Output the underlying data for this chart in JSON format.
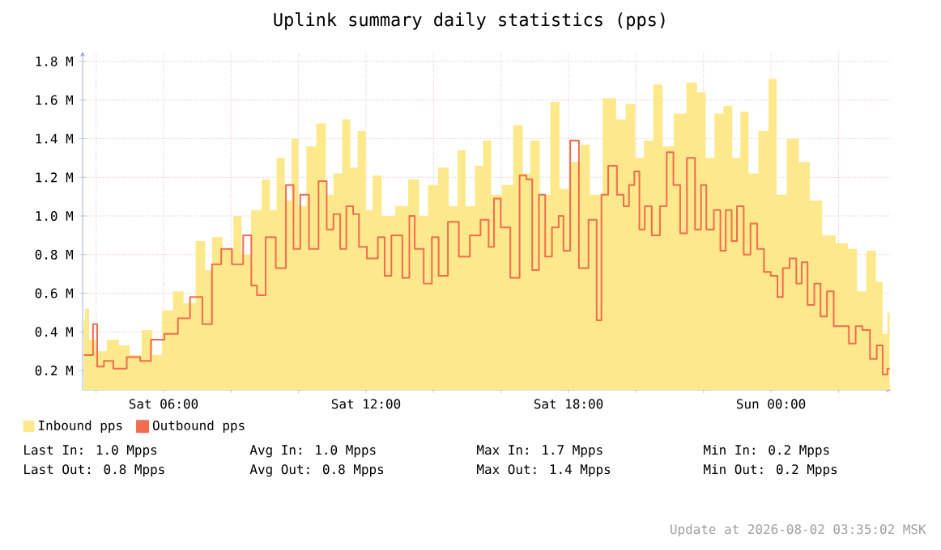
{
  "chart_data": {
    "type": "area",
    "title": "Uplink summary daily statistics (pps)",
    "xlim": [
      "2026-08-01T03:36",
      "2026-08-02T03:33"
    ],
    "ylim": [
      0.1,
      1.85
    ],
    "xticks": [
      {
        "value": "2026-08-01T04:00",
        "label": null
      },
      {
        "value": "2026-08-01T06:00",
        "label": "Sat 06:00"
      },
      {
        "value": "2026-08-01T08:00",
        "label": null
      },
      {
        "value": "2026-08-01T10:00",
        "label": null
      },
      {
        "value": "2026-08-01T12:00",
        "label": "Sat 12:00"
      },
      {
        "value": "2026-08-01T14:00",
        "label": null
      },
      {
        "value": "2026-08-01T16:00",
        "label": null
      },
      {
        "value": "2026-08-01T18:00",
        "label": "Sat 18:00"
      },
      {
        "value": "2026-08-01T20:00",
        "label": null
      },
      {
        "value": "2026-08-01T22:00",
        "label": null
      },
      {
        "value": "2026-08-02T00:00",
        "label": "Sun 00:00"
      },
      {
        "value": "2026-08-02T02:00",
        "label": null
      }
    ],
    "yticks": [
      {
        "value": 0.2,
        "label": "0.2 M"
      },
      {
        "value": 0.4,
        "label": "0.4 M"
      },
      {
        "value": 0.6,
        "label": "0.6 M"
      },
      {
        "value": 0.8,
        "label": "0.8 M"
      },
      {
        "value": 1.0,
        "label": "1.0 M"
      },
      {
        "value": 1.2,
        "label": "1.2 M"
      },
      {
        "value": 1.4,
        "label": "1.4 M"
      },
      {
        "value": 1.6,
        "label": "1.6 M"
      },
      {
        "value": 1.8,
        "label": "1.8 M"
      }
    ],
    "grid": true,
    "legend": "bottom",
    "marker": "none",
    "series": [
      {
        "name": "Inbound pps",
        "color": "#fde98c",
        "x": [
          "2026-08-01T03:38",
          "2026-08-01T03:43",
          "2026-08-01T03:52",
          "2026-08-01T04:07",
          "2026-08-01T04:31",
          "2026-08-01T04:50",
          "2026-08-01T05:09",
          "2026-08-01T05:33",
          "2026-08-01T05:47",
          "2026-08-01T06:07",
          "2026-08-01T06:26",
          "2026-08-01T06:45",
          "2026-08-01T07:09",
          "2026-08-01T07:19",
          "2026-08-01T07:33",
          "2026-08-01T07:57",
          "2026-08-01T08:11",
          "2026-08-01T08:26",
          "2026-08-01T08:45",
          "2026-08-01T09:04",
          "2026-08-01T09:14",
          "2026-08-01T09:28",
          "2026-08-01T09:43",
          "2026-08-01T09:52",
          "2026-08-01T10:07",
          "2026-08-01T10:21",
          "2026-08-01T10:42",
          "2026-08-01T10:55",
          "2026-08-01T11:09",
          "2026-08-01T11:26",
          "2026-08-01T11:38",
          "2026-08-01T11:52",
          "2026-08-01T12:07",
          "2026-08-01T12:16",
          "2026-08-01T12:40",
          "2026-08-01T13:04",
          "2026-08-01T13:26",
          "2026-08-01T13:43",
          "2026-08-01T13:57",
          "2026-08-01T14:19",
          "2026-08-01T14:35",
          "2026-08-01T14:50",
          "2026-08-01T15:04",
          "2026-08-01T15:23",
          "2026-08-01T15:33",
          "2026-08-01T15:52",
          "2026-08-01T16:11",
          "2026-08-01T16:32",
          "2026-08-01T16:45",
          "2026-08-01T16:59",
          "2026-08-01T17:19",
          "2026-08-01T17:36",
          "2026-08-01T17:52",
          "2026-08-01T18:11",
          "2026-08-01T18:31",
          "2026-08-01T18:45",
          "2026-08-01T19:16",
          "2026-08-01T19:33",
          "2026-08-01T19:50",
          "2026-08-01T20:07",
          "2026-08-01T20:21",
          "2026-08-01T20:40",
          "2026-08-01T20:55",
          "2026-08-01T21:19",
          "2026-08-01T21:40",
          "2026-08-01T21:57",
          "2026-08-01T22:11",
          "2026-08-01T22:28",
          "2026-08-01T22:43",
          "2026-08-01T22:59",
          "2026-08-01T23:12",
          "2026-08-01T23:28",
          "2026-08-01T23:47",
          "2026-08-02T00:04",
          "2026-08-02T00:16",
          "2026-08-02T00:40",
          "2026-08-02T00:59",
          "2026-08-02T01:19",
          "2026-08-02T01:43",
          "2026-08-02T02:07",
          "2026-08-02T02:26",
          "2026-08-02T02:40",
          "2026-08-02T02:59",
          "2026-08-02T03:14",
          "2026-08-02T03:23",
          "2026-08-02T03:31"
        ],
        "values": [
          0.46,
          0.52,
          0.36,
          0.3,
          0.36,
          0.33,
          0.28,
          0.41,
          0.28,
          0.51,
          0.61,
          0.55,
          0.87,
          0.72,
          0.89,
          0.83,
          1.0,
          0.8,
          1.03,
          1.19,
          1.03,
          1.3,
          1.08,
          1.4,
          1.05,
          1.36,
          1.48,
          1.11,
          1.22,
          1.5,
          1.25,
          1.44,
          1.03,
          1.21,
          1.0,
          1.05,
          1.19,
          1.0,
          1.16,
          1.25,
          1.05,
          1.34,
          1.05,
          1.26,
          1.39,
          1.11,
          1.16,
          1.47,
          1.22,
          1.39,
          1.11,
          1.59,
          1.14,
          1.28,
          1.37,
          1.11,
          1.61,
          1.5,
          1.58,
          1.3,
          1.39,
          1.68,
          1.36,
          1.53,
          1.69,
          1.64,
          1.3,
          1.53,
          1.57,
          1.3,
          1.54,
          1.22,
          1.44,
          1.71,
          1.11,
          1.4,
          1.28,
          1.08,
          0.9,
          0.86,
          0.83,
          0.61,
          0.82,
          0.66,
          0.39,
          0.5
        ]
      },
      {
        "name": "Outbound pps",
        "type": "step",
        "color": "#f26b4f",
        "x": [
          "2026-08-01T03:38",
          "2026-08-01T03:52",
          "2026-08-01T03:57",
          "2026-08-01T04:07",
          "2026-08-01T04:21",
          "2026-08-01T04:40",
          "2026-08-01T05:09",
          "2026-08-01T05:28",
          "2026-08-01T05:47",
          "2026-08-01T06:16",
          "2026-08-01T06:35",
          "2026-08-01T06:59",
          "2026-08-01T07:19",
          "2026-08-01T07:33",
          "2026-08-01T07:52",
          "2026-08-01T08:11",
          "2026-08-01T08:32",
          "2026-08-01T08:40",
          "2026-08-01T08:52",
          "2026-08-01T09:11",
          "2026-08-01T09:28",
          "2026-08-01T09:47",
          "2026-08-01T09:55",
          "2026-08-01T10:11",
          "2026-08-01T10:26",
          "2026-08-01T10:45",
          "2026-08-01T10:55",
          "2026-08-01T11:09",
          "2026-08-01T11:19",
          "2026-08-01T11:31",
          "2026-08-01T11:43",
          "2026-08-01T11:52",
          "2026-08-01T12:11",
          "2026-08-01T12:31",
          "2026-08-01T12:35",
          "2026-08-01T12:55",
          "2026-08-01T13:14",
          "2026-08-01T13:20",
          "2026-08-01T13:33",
          "2026-08-01T13:52",
          "2026-08-01T14:02",
          "2026-08-01T14:16",
          "2026-08-01T14:35",
          "2026-08-01T14:55",
          "2026-08-01T15:14",
          "2026-08-01T15:33",
          "2026-08-01T15:43",
          "2026-08-01T15:52",
          "2026-08-01T16:07",
          "2026-08-01T16:26",
          "2026-08-01T16:40",
          "2026-08-01T16:50",
          "2026-08-01T17:01",
          "2026-08-01T17:14",
          "2026-08-01T17:23",
          "2026-08-01T17:38",
          "2026-08-01T17:47",
          "2026-08-01T17:55",
          "2026-08-01T18:11",
          "2026-08-01T18:26",
          "2026-08-01T18:45",
          "2026-08-01T18:55",
          "2026-08-01T19:02",
          "2026-08-01T19:19",
          "2026-08-01T19:33",
          "2026-08-01T19:43",
          "2026-08-01T19:52",
          "2026-08-01T20:02",
          "2026-08-01T20:10",
          "2026-08-01T20:21",
          "2026-08-01T20:35",
          "2026-08-01T20:50",
          "2026-08-01T20:59",
          "2026-08-01T21:14",
          "2026-08-01T21:23",
          "2026-08-01T21:38",
          "2026-08-01T21:52",
          "2026-08-01T21:59",
          "2026-08-01T22:11",
          "2026-08-01T22:26",
          "2026-08-01T22:34",
          "2026-08-01T22:45",
          "2026-08-01T22:55",
          "2026-08-01T23:04",
          "2026-08-01T23:19",
          "2026-08-01T23:28",
          "2026-08-01T23:43",
          "2026-08-01T23:52",
          "2026-08-02T00:07",
          "2026-08-02T00:16",
          "2026-08-02T00:26",
          "2026-08-02T00:40",
          "2026-08-02T00:50",
          "2026-08-02T00:59",
          "2026-08-02T01:11",
          "2026-08-02T01:23",
          "2026-08-02T01:33",
          "2026-08-02T01:46",
          "2026-08-02T01:57",
          "2026-08-02T02:11",
          "2026-08-02T02:26",
          "2026-08-02T02:35",
          "2026-08-02T02:50",
          "2026-08-02T03:02",
          "2026-08-02T03:14",
          "2026-08-02T03:23",
          "2026-08-02T03:31"
        ],
        "values": [
          0.28,
          0.28,
          0.44,
          0.22,
          0.25,
          0.21,
          0.27,
          0.25,
          0.36,
          0.39,
          0.47,
          0.58,
          0.44,
          0.75,
          0.83,
          0.75,
          0.9,
          0.64,
          0.59,
          0.89,
          0.73,
          1.16,
          0.83,
          1.11,
          0.83,
          1.18,
          0.93,
          1.01,
          0.83,
          1.05,
          1.01,
          0.84,
          0.78,
          0.89,
          0.69,
          0.9,
          0.68,
          1.0,
          0.83,
          0.65,
          0.89,
          0.69,
          0.97,
          0.79,
          0.9,
          0.98,
          0.84,
          1.09,
          0.94,
          0.68,
          1.21,
          1.19,
          0.72,
          1.11,
          0.79,
          0.94,
          1.0,
          0.82,
          1.39,
          0.73,
          0.98,
          0.46,
          1.11,
          1.26,
          1.11,
          1.05,
          1.16,
          1.23,
          0.93,
          1.05,
          0.9,
          1.05,
          1.33,
          1.16,
          0.91,
          1.3,
          0.93,
          1.16,
          0.93,
          1.03,
          0.82,
          1.03,
          0.87,
          1.05,
          0.8,
          0.96,
          0.83,
          0.71,
          0.69,
          0.58,
          0.73,
          0.78,
          0.65,
          0.76,
          0.54,
          0.65,
          0.48,
          0.61,
          0.43,
          0.43,
          0.34,
          0.43,
          0.41,
          0.26,
          0.33,
          0.18,
          0.21
        ]
      }
    ],
    "annotations": [
      "Last In: 1.0 Mpps",
      "Avg In: 1.0 Mpps",
      "Max In: 1.7 Mpps",
      "Min In: 0.2 Mpps",
      "Last Out: 0.8 Mpps",
      "Avg Out: 0.8 Mpps",
      "Max Out: 1.4 Mpps",
      "Min Out: 0.2 Mpps",
      "Update at 2026-08-02 03:35:02 MSK"
    ]
  }
}
